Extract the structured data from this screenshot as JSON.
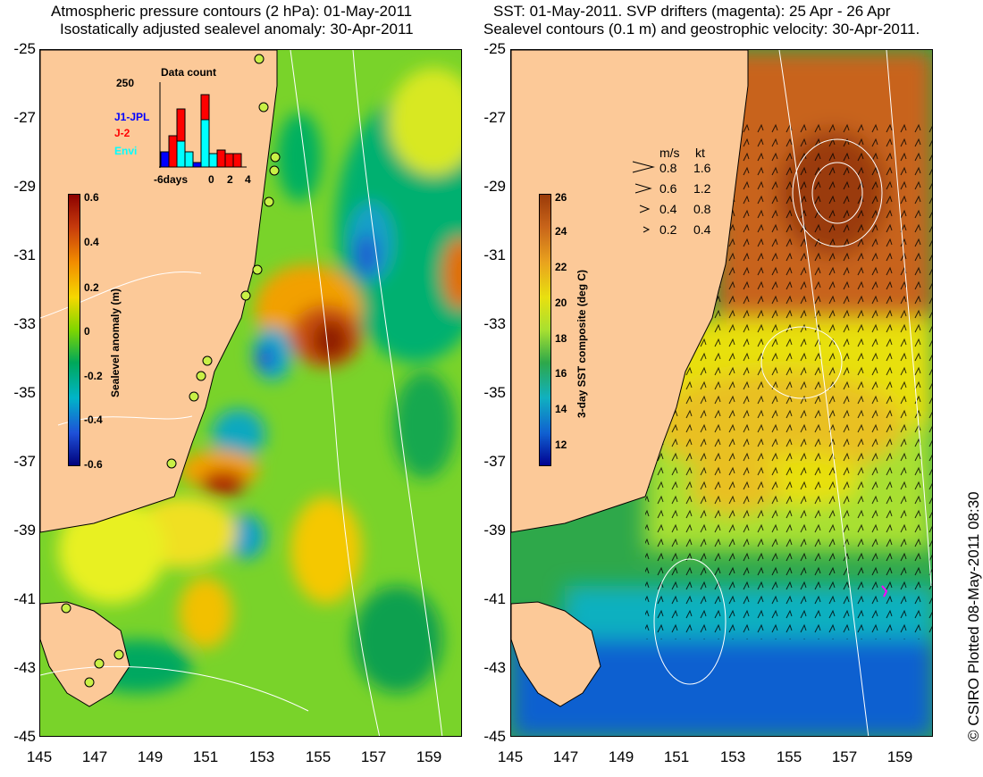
{
  "left_panel": {
    "title_line1": "Atmospheric pressure contours (2 hPa): 01-May-2011",
    "title_line2": "Isostatically adjusted sealevel anomaly: 30-Apr-2011",
    "colorbar": {
      "title": "Sealevel anomaly (m)",
      "ticks": [
        "0.6",
        "0.4",
        "0.2",
        "0",
        "-0.2",
        "-0.4",
        "-0.6"
      ],
      "colors": [
        "#8b0000",
        "#c63a0c",
        "#f28c00",
        "#f5d800",
        "#7fd600",
        "#00a85a",
        "#00b4c8",
        "#1e50d8",
        "#00007a"
      ]
    },
    "inset": {
      "title": "Data count",
      "ymax": "250",
      "xticks": [
        "-6days",
        "0",
        "2",
        "4"
      ],
      "series": [
        {
          "name": "J1-JPL",
          "color": "#0000ff"
        },
        {
          "name": "J-2",
          "color": "#ff0000"
        },
        {
          "name": "Envi",
          "color": "#00ffff"
        }
      ]
    }
  },
  "right_panel": {
    "title_line1": "SST: 01-May-2011. SVP drifters (magenta): 25 Apr - 26 Apr",
    "title_line2": "Sealevel contours (0.1 m) and geostrophic velocity: 30-Apr-2011.",
    "colorbar": {
      "title": "3-day SST composite (deg C)",
      "ticks": [
        "26",
        "24",
        "22",
        "20",
        "18",
        "16",
        "14",
        "12"
      ],
      "colors": [
        "#9a3a08",
        "#c8641a",
        "#e9a21e",
        "#e8e010",
        "#a8e030",
        "#2ea84a",
        "#10b0c0",
        "#1060d0",
        "#000090"
      ]
    },
    "velocity_legend": {
      "header_ms": "m/s",
      "header_kt": "kt",
      "rows": [
        {
          "ms": "0.8",
          "kt": "1.6"
        },
        {
          "ms": "0.6",
          "kt": "1.2"
        },
        {
          "ms": "0.4",
          "kt": "0.8"
        },
        {
          "ms": "0.2",
          "kt": "0.4"
        }
      ]
    }
  },
  "axes": {
    "y_ticks": [
      "-25",
      "-27",
      "-29",
      "-31",
      "-33",
      "-35",
      "-37",
      "-39",
      "-41",
      "-43",
      "-45"
    ],
    "x_ticks": [
      "145",
      "147",
      "149",
      "151",
      "153",
      "155",
      "157",
      "159"
    ]
  },
  "colors": {
    "land": "#fcc998",
    "coast": "#000000",
    "contour": "#ffffff",
    "tide_marker": "#c8f046"
  },
  "credit": "© CSIRO Plotted 08-May-2011 08:30"
}
